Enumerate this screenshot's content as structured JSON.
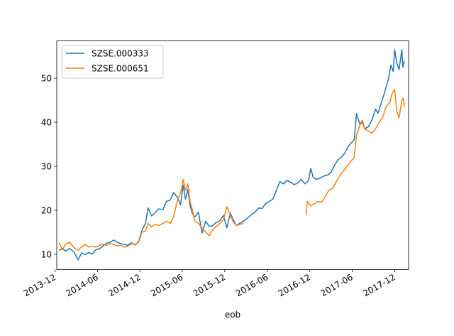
{
  "chart_data": {
    "type": "line",
    "title": "",
    "xlabel": "eob",
    "ylabel": "",
    "x_ticks": [
      "2013-12",
      "2014-06",
      "2014-12",
      "2015-06",
      "2015-12",
      "2016-06",
      "2016-12",
      "2017-06",
      "2017-12"
    ],
    "y_ticks": [
      10,
      20,
      30,
      40,
      50
    ],
    "xlim": [
      "2013-12-08",
      "2018-01-30"
    ],
    "ylim": [
      6.5,
      58.5
    ],
    "legend": "top-left",
    "grid": false,
    "colors": {
      "SZSE.000333": "#1f77b4",
      "SZSE.000651": "#ff7f0e"
    },
    "series": [
      {
        "name": "SZSE.000333",
        "points": [
          [
            "2013-12-18",
            10.9
          ],
          [
            "2014-01-02",
            11.3
          ],
          [
            "2014-01-15",
            10.7
          ],
          [
            "2014-02-01",
            11.3
          ],
          [
            "2014-02-20",
            10.5
          ],
          [
            "2014-03-10",
            8.7
          ],
          [
            "2014-03-25",
            10.3
          ],
          [
            "2014-04-10",
            9.9
          ],
          [
            "2014-04-25",
            10.4
          ],
          [
            "2014-05-10",
            10.0
          ],
          [
            "2014-05-25",
            11.0
          ],
          [
            "2014-06-10",
            11.2
          ],
          [
            "2014-06-25",
            11.9
          ],
          [
            "2014-07-10",
            12.5
          ],
          [
            "2014-07-25",
            12.7
          ],
          [
            "2014-08-10",
            13.2
          ],
          [
            "2014-08-25",
            12.7
          ],
          [
            "2014-09-10",
            12.4
          ],
          [
            "2014-09-25",
            12.2
          ],
          [
            "2014-10-10",
            12.0
          ],
          [
            "2014-10-25",
            12.6
          ],
          [
            "2014-11-10",
            12.1
          ],
          [
            "2014-11-25",
            12.8
          ],
          [
            "2014-12-10",
            15.5
          ],
          [
            "2014-12-25",
            17.0
          ],
          [
            "2015-01-05",
            20.5
          ],
          [
            "2015-01-20",
            18.7
          ],
          [
            "2015-02-05",
            19.5
          ],
          [
            "2015-02-20",
            20.3
          ],
          [
            "2015-03-10",
            20.1
          ],
          [
            "2015-03-25",
            22.0
          ],
          [
            "2015-04-10",
            22.3
          ],
          [
            "2015-04-25",
            24.0
          ],
          [
            "2015-05-10",
            23.0
          ],
          [
            "2015-05-25",
            21.2
          ],
          [
            "2015-06-05",
            25.7
          ],
          [
            "2015-06-15",
            22.5
          ],
          [
            "2015-06-25",
            24.7
          ],
          [
            "2015-07-05",
            21.0
          ],
          [
            "2015-07-15",
            19.2
          ],
          [
            "2015-07-25",
            18.5
          ],
          [
            "2015-08-10",
            19.5
          ],
          [
            "2015-08-25",
            14.8
          ],
          [
            "2015-09-10",
            17.5
          ],
          [
            "2015-09-25",
            16.3
          ],
          [
            "2015-10-10",
            16.5
          ],
          [
            "2015-10-25",
            17.2
          ],
          [
            "2015-11-10",
            17.6
          ],
          [
            "2015-11-25",
            18.8
          ],
          [
            "2015-12-10",
            16.0
          ],
          [
            "2015-12-25",
            19.3
          ],
          [
            "2016-01-05",
            18.0
          ],
          [
            "2016-01-20",
            16.5
          ],
          [
            "2016-02-05",
            17.1
          ],
          [
            "2016-02-20",
            17.5
          ],
          [
            "2016-03-10",
            18.3
          ],
          [
            "2016-03-25",
            19.0
          ],
          [
            "2016-04-10",
            19.6
          ],
          [
            "2016-04-25",
            20.5
          ],
          [
            "2016-05-10",
            20.4
          ],
          [
            "2016-05-25",
            21.5
          ],
          [
            "2016-06-10",
            22.0
          ],
          [
            "2016-06-25",
            22.5
          ],
          [
            "2016-07-10",
            24.5
          ],
          [
            "2016-07-25",
            26.5
          ],
          [
            "2016-08-10",
            26.0
          ],
          [
            "2016-08-25",
            26.8
          ],
          [
            "2016-09-10",
            26.3
          ],
          [
            "2016-09-25",
            25.8
          ],
          [
            "2016-10-10",
            26.2
          ],
          [
            "2016-10-25",
            27.0
          ],
          [
            "2016-11-10",
            26.0
          ],
          [
            "2016-11-25",
            26.7
          ],
          [
            "2016-12-05",
            29.5
          ],
          [
            "2016-12-15",
            27.5
          ],
          [
            "2016-12-28",
            27.0
          ],
          [
            "2017-01-15",
            27.3
          ],
          [
            "2017-02-01",
            27.8
          ],
          [
            "2017-02-15",
            28.0
          ],
          [
            "2017-03-01",
            28.5
          ],
          [
            "2017-03-15",
            30.0
          ],
          [
            "2017-04-01",
            31.5
          ],
          [
            "2017-04-15",
            32.0
          ],
          [
            "2017-05-01",
            33.0
          ],
          [
            "2017-05-15",
            34.5
          ],
          [
            "2017-06-01",
            35.5
          ],
          [
            "2017-06-10",
            36.0
          ],
          [
            "2017-06-20",
            42.0
          ],
          [
            "2017-06-25",
            41.0
          ],
          [
            "2017-07-05",
            39.5
          ],
          [
            "2017-07-15",
            40.0
          ],
          [
            "2017-07-25",
            38.5
          ],
          [
            "2017-08-10",
            39.0
          ],
          [
            "2017-08-25",
            40.5
          ],
          [
            "2017-09-10",
            43.0
          ],
          [
            "2017-09-20",
            42.0
          ],
          [
            "2017-10-05",
            44.5
          ],
          [
            "2017-10-20",
            47.0
          ],
          [
            "2017-11-05",
            50.0
          ],
          [
            "2017-11-15",
            53.0
          ],
          [
            "2017-11-25",
            51.5
          ],
          [
            "2017-12-01",
            56.5
          ],
          [
            "2017-12-10",
            53.5
          ],
          [
            "2017-12-20",
            52.0
          ],
          [
            "2018-01-01",
            56.5
          ],
          [
            "2018-01-05",
            52.5
          ],
          [
            "2018-01-12",
            54.0
          ]
        ]
      },
      {
        "name": "SZSE.000651",
        "points": [
          [
            "2013-12-18",
            12.6
          ],
          [
            "2014-01-02",
            11.0
          ],
          [
            "2014-01-15",
            12.3
          ],
          [
            "2014-02-01",
            12.7
          ],
          [
            "2014-02-20",
            11.5
          ],
          [
            "2014-03-10",
            10.9
          ],
          [
            "2014-03-25",
            11.7
          ],
          [
            "2014-04-10",
            12.2
          ],
          [
            "2014-04-25",
            11.6
          ],
          [
            "2014-05-10",
            11.8
          ],
          [
            "2014-05-25",
            11.6
          ],
          [
            "2014-06-10",
            12.0
          ],
          [
            "2014-06-25",
            12.3
          ],
          [
            "2014-07-10",
            12.0
          ],
          [
            "2014-07-25",
            12.4
          ],
          [
            "2014-08-10",
            12.2
          ],
          [
            "2014-08-25",
            11.9
          ],
          [
            "2014-09-10",
            12.0
          ],
          [
            "2014-09-25",
            11.6
          ],
          [
            "2014-10-10",
            11.8
          ],
          [
            "2014-10-25",
            12.4
          ],
          [
            "2014-11-10",
            12.2
          ],
          [
            "2014-11-25",
            12.7
          ],
          [
            "2014-12-10",
            15.0
          ],
          [
            "2014-12-25",
            15.3
          ],
          [
            "2015-01-05",
            17.0
          ],
          [
            "2015-01-20",
            16.2
          ],
          [
            "2015-02-05",
            16.8
          ],
          [
            "2015-02-20",
            16.5
          ],
          [
            "2015-03-10",
            17.0
          ],
          [
            "2015-03-25",
            17.5
          ],
          [
            "2015-04-10",
            17.0
          ],
          [
            "2015-04-25",
            18.5
          ],
          [
            "2015-05-10",
            22.0
          ],
          [
            "2015-05-25",
            24.0
          ],
          [
            "2015-06-05",
            27.0
          ],
          [
            "2015-06-15",
            24.5
          ],
          [
            "2015-06-25",
            26.0
          ],
          [
            "2015-07-05",
            22.0
          ],
          [
            "2015-07-15",
            20.0
          ],
          [
            "2015-07-25",
            17.5
          ],
          [
            "2015-08-10",
            17.0
          ],
          [
            "2015-08-25",
            16.0
          ],
          [
            "2015-09-10",
            15.0
          ],
          [
            "2015-09-25",
            14.2
          ],
          [
            "2015-10-10",
            15.5
          ],
          [
            "2015-10-25",
            16.3
          ],
          [
            "2015-11-10",
            17.0
          ],
          [
            "2015-11-25",
            17.8
          ],
          [
            "2015-12-10",
            20.8
          ],
          [
            "2015-12-20",
            19.5
          ],
          [
            "2016-01-05",
            17.5
          ],
          [
            "2016-01-20",
            16.5
          ],
          [
            "2016-02-05",
            16.8
          ],
          [
            "2016-02-20",
            17.0
          ],
          [
            "2016-11-15",
            18.8
          ],
          [
            "2016-11-20",
            22.0
          ],
          [
            "2016-12-05",
            21.0
          ],
          [
            "2016-12-20",
            21.5
          ],
          [
            "2017-01-05",
            22.0
          ],
          [
            "2017-01-20",
            21.8
          ],
          [
            "2017-02-05",
            23.0
          ],
          [
            "2017-02-20",
            24.5
          ],
          [
            "2017-03-10",
            25.0
          ],
          [
            "2017-03-25",
            26.5
          ],
          [
            "2017-04-10",
            28.0
          ],
          [
            "2017-04-25",
            29.0
          ],
          [
            "2017-05-10",
            30.0
          ],
          [
            "2017-05-25",
            31.0
          ],
          [
            "2017-06-10",
            32.0
          ],
          [
            "2017-06-20",
            37.0
          ],
          [
            "2017-07-05",
            39.5
          ],
          [
            "2017-07-15",
            40.5
          ],
          [
            "2017-07-25",
            38.5
          ],
          [
            "2017-08-10",
            38.0
          ],
          [
            "2017-08-25",
            37.5
          ],
          [
            "2017-09-10",
            38.5
          ],
          [
            "2017-09-25",
            40.0
          ],
          [
            "2017-10-10",
            41.0
          ],
          [
            "2017-10-25",
            43.5
          ],
          [
            "2017-11-10",
            44.5
          ],
          [
            "2017-11-20",
            46.5
          ],
          [
            "2017-12-01",
            47.5
          ],
          [
            "2017-12-10",
            42.5
          ],
          [
            "2017-12-20",
            41.0
          ],
          [
            "2018-01-01",
            45.0
          ],
          [
            "2018-01-07",
            45.5
          ],
          [
            "2018-01-12",
            43.5
          ]
        ]
      }
    ]
  }
}
